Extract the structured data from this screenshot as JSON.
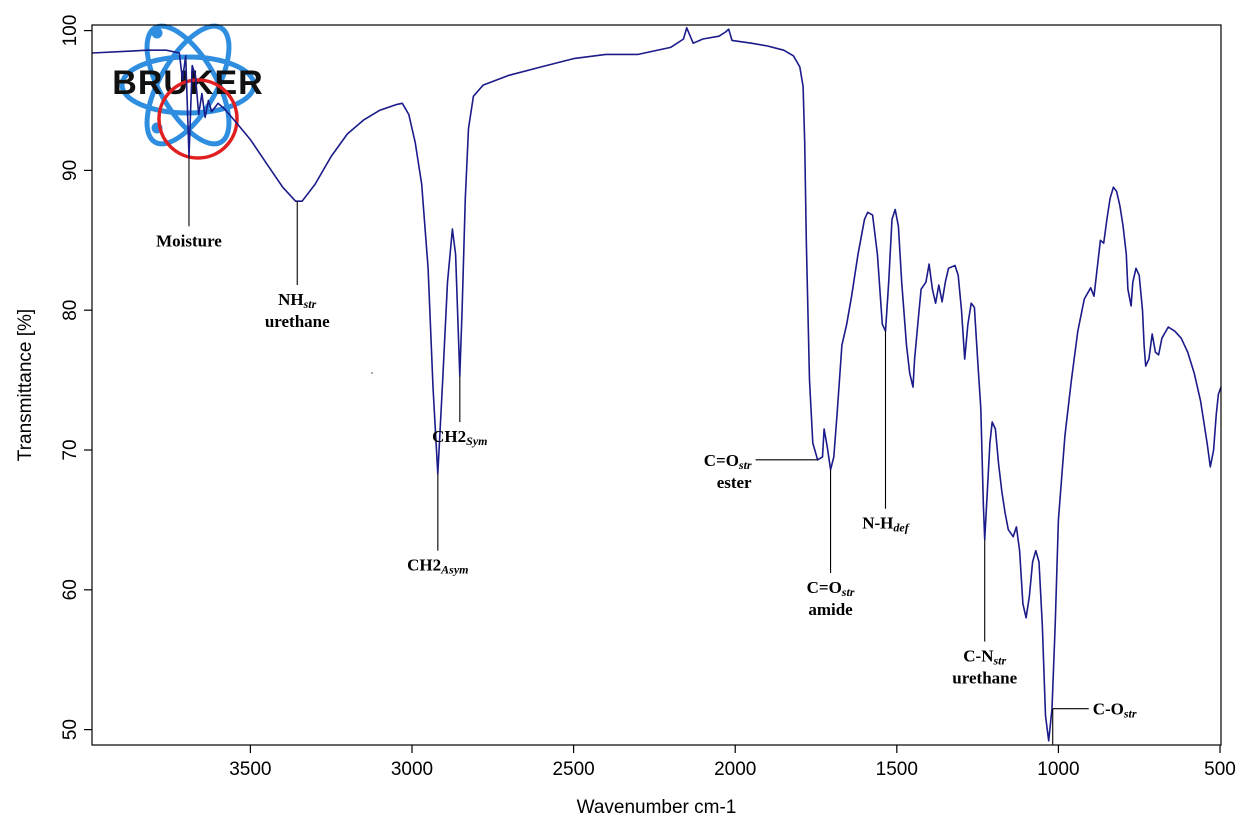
{
  "chart_data": {
    "type": "line",
    "xlabel": "Wavenumber cm-1",
    "ylabel": "Transmittance [%]",
    "x_reversed": true,
    "xlim": [
      3990,
      497
    ],
    "ylim": [
      48.9,
      100.4
    ],
    "xticks": [
      3500,
      3000,
      2500,
      2000,
      1500,
      1000,
      500
    ],
    "yticks": [
      50,
      60,
      70,
      80,
      90,
      100
    ],
    "grid": false,
    "line_color": "#1b1b8a",
    "series": [
      {
        "values": [
          [
            3990,
            98.4
          ],
          [
            3900,
            98.5
          ],
          [
            3820,
            98.6
          ],
          [
            3760,
            98.6
          ],
          [
            3720,
            98.4
          ],
          [
            3710,
            96.5
          ],
          [
            3700,
            98.2
          ],
          [
            3690,
            91.0
          ],
          [
            3680,
            97.5
          ],
          [
            3670,
            96.8
          ],
          [
            3660,
            94.0
          ],
          [
            3650,
            95.5
          ],
          [
            3640,
            93.8
          ],
          [
            3630,
            95.0
          ],
          [
            3620,
            94.2
          ],
          [
            3600,
            94.8
          ],
          [
            3580,
            94.4
          ],
          [
            3550,
            93.6
          ],
          [
            3500,
            92.2
          ],
          [
            3450,
            90.5
          ],
          [
            3400,
            88.8
          ],
          [
            3360,
            87.8
          ],
          [
            3340,
            87.8
          ],
          [
            3300,
            89.0
          ],
          [
            3250,
            91.0
          ],
          [
            3200,
            92.6
          ],
          [
            3150,
            93.6
          ],
          [
            3100,
            94.3
          ],
          [
            3050,
            94.7
          ],
          [
            3030,
            94.8
          ],
          [
            3010,
            94.0
          ],
          [
            2990,
            92.0
          ],
          [
            2970,
            89.0
          ],
          [
            2950,
            83.0
          ],
          [
            2935,
            74.5
          ],
          [
            2920,
            68.3
          ],
          [
            2905,
            75.0
          ],
          [
            2890,
            82.0
          ],
          [
            2875,
            85.8
          ],
          [
            2865,
            84.0
          ],
          [
            2852,
            75.3
          ],
          [
            2845,
            80.0
          ],
          [
            2835,
            88.0
          ],
          [
            2825,
            93.0
          ],
          [
            2810,
            95.3
          ],
          [
            2780,
            96.1
          ],
          [
            2700,
            96.8
          ],
          [
            2600,
            97.4
          ],
          [
            2500,
            98.0
          ],
          [
            2400,
            98.3
          ],
          [
            2300,
            98.3
          ],
          [
            2200,
            98.8
          ],
          [
            2160,
            99.4
          ],
          [
            2150,
            100.2
          ],
          [
            2130,
            99.1
          ],
          [
            2100,
            99.4
          ],
          [
            2050,
            99.6
          ],
          [
            2030,
            99.9
          ],
          [
            2020,
            100.1
          ],
          [
            2010,
            99.3
          ],
          [
            1950,
            99.1
          ],
          [
            1900,
            98.9
          ],
          [
            1850,
            98.6
          ],
          [
            1820,
            98.2
          ],
          [
            1800,
            97.4
          ],
          [
            1790,
            96.0
          ],
          [
            1785,
            92.0
          ],
          [
            1780,
            85.0
          ],
          [
            1770,
            75.0
          ],
          [
            1760,
            70.5
          ],
          [
            1745,
            69.3
          ],
          [
            1730,
            69.5
          ],
          [
            1725,
            71.5
          ],
          [
            1715,
            70.2
          ],
          [
            1705,
            68.6
          ],
          [
            1695,
            69.5
          ],
          [
            1685,
            72.5
          ],
          [
            1670,
            77.5
          ],
          [
            1655,
            79.0
          ],
          [
            1640,
            81.0
          ],
          [
            1620,
            84.0
          ],
          [
            1600,
            86.5
          ],
          [
            1590,
            87.0
          ],
          [
            1575,
            86.8
          ],
          [
            1560,
            84.0
          ],
          [
            1545,
            79.0
          ],
          [
            1535,
            78.5
          ],
          [
            1525,
            82.0
          ],
          [
            1515,
            86.5
          ],
          [
            1505,
            87.2
          ],
          [
            1495,
            86.0
          ],
          [
            1485,
            82.0
          ],
          [
            1470,
            77.5
          ],
          [
            1460,
            75.5
          ],
          [
            1450,
            74.5
          ],
          [
            1445,
            76.5
          ],
          [
            1435,
            79.0
          ],
          [
            1425,
            81.5
          ],
          [
            1410,
            82.0
          ],
          [
            1400,
            83.3
          ],
          [
            1390,
            81.5
          ],
          [
            1380,
            80.5
          ],
          [
            1370,
            81.8
          ],
          [
            1360,
            80.6
          ],
          [
            1350,
            82.0
          ],
          [
            1340,
            83.0
          ],
          [
            1320,
            83.2
          ],
          [
            1310,
            82.5
          ],
          [
            1300,
            80.0
          ],
          [
            1290,
            76.5
          ],
          [
            1280,
            79.0
          ],
          [
            1270,
            80.5
          ],
          [
            1260,
            80.2
          ],
          [
            1250,
            76.5
          ],
          [
            1240,
            73.0
          ],
          [
            1232,
            66.0
          ],
          [
            1228,
            63.6
          ],
          [
            1220,
            67.0
          ],
          [
            1212,
            70.5
          ],
          [
            1205,
            72.0
          ],
          [
            1195,
            71.5
          ],
          [
            1185,
            69.0
          ],
          [
            1175,
            67.0
          ],
          [
            1165,
            65.5
          ],
          [
            1155,
            64.3
          ],
          [
            1140,
            63.8
          ],
          [
            1130,
            64.5
          ],
          [
            1120,
            62.8
          ],
          [
            1110,
            59.0
          ],
          [
            1100,
            58.0
          ],
          [
            1090,
            59.5
          ],
          [
            1080,
            62.0
          ],
          [
            1070,
            62.8
          ],
          [
            1060,
            62.0
          ],
          [
            1050,
            57.5
          ],
          [
            1040,
            51.0
          ],
          [
            1030,
            49.2
          ],
          [
            1020,
            51.5
          ],
          [
            1010,
            57.5
          ],
          [
            1000,
            65.0
          ],
          [
            980,
            71.0
          ],
          [
            960,
            75.0
          ],
          [
            940,
            78.5
          ],
          [
            920,
            80.8
          ],
          [
            900,
            81.6
          ],
          [
            890,
            81.0
          ],
          [
            880,
            83.0
          ],
          [
            870,
            85.0
          ],
          [
            860,
            84.8
          ],
          [
            850,
            86.5
          ],
          [
            840,
            88.0
          ],
          [
            830,
            88.8
          ],
          [
            820,
            88.5
          ],
          [
            810,
            87.5
          ],
          [
            800,
            86.0
          ],
          [
            790,
            84.0
          ],
          [
            785,
            81.5
          ],
          [
            775,
            80.3
          ],
          [
            770,
            82.0
          ],
          [
            760,
            83.0
          ],
          [
            750,
            82.5
          ],
          [
            740,
            80.0
          ],
          [
            735,
            77.5
          ],
          [
            730,
            76.0
          ],
          [
            720,
            76.5
          ],
          [
            710,
            78.3
          ],
          [
            700,
            77.0
          ],
          [
            690,
            76.8
          ],
          [
            680,
            78.0
          ],
          [
            660,
            78.8
          ],
          [
            640,
            78.5
          ],
          [
            620,
            78.0
          ],
          [
            600,
            77.0
          ],
          [
            580,
            75.5
          ],
          [
            560,
            73.5
          ],
          [
            540,
            70.5
          ],
          [
            530,
            68.8
          ],
          [
            520,
            70.0
          ],
          [
            512,
            72.5
          ],
          [
            505,
            74.0
          ],
          [
            497,
            74.5
          ]
        ]
      }
    ],
    "annotations": [
      {
        "lines": [
          {
            "text": "Moisture",
            "sub": ""
          }
        ],
        "x": 3690,
        "y_tip": 91.0,
        "y_label": 86.0
      },
      {
        "lines": [
          {
            "text": "NH",
            "sub": "str"
          },
          {
            "text": "urethane",
            "sub": ""
          }
        ],
        "x": 3355,
        "y_tip": 87.8,
        "y_label": 81.8
      },
      {
        "lines": [
          {
            "text": "CH2",
            "sub": "Sym"
          }
        ],
        "x": 2852,
        "y_tip": 75.3,
        "y_label": 72.0
      },
      {
        "lines": [
          {
            "text": "CH2",
            "sub": "Asym"
          }
        ],
        "x": 2920,
        "y_tip": 68.3,
        "y_label": 62.8
      },
      {
        "lines": [
          {
            "text": "C=O",
            "sub": "str"
          },
          {
            "text": "ester",
            "sub": ""
          }
        ],
        "x": 1745,
        "y_tip": 69.3,
        "y_label": 69.3
      },
      {
        "lines": [
          {
            "text": "C=O",
            "sub": "str"
          },
          {
            "text": "amide",
            "sub": ""
          }
        ],
        "x": 1705,
        "y_tip": 68.6,
        "y_label": 61.2
      },
      {
        "lines": [
          {
            "text": "N-H",
            "sub": "def"
          }
        ],
        "x": 1535,
        "y_tip": 78.5,
        "y_label": 65.8
      },
      {
        "lines": [
          {
            "text": "C-N",
            "sub": "str"
          },
          {
            "text": "urethane",
            "sub": ""
          }
        ],
        "x": 1228,
        "y_tip": 63.6,
        "y_label": 56.3
      },
      {
        "lines": [
          {
            "text": "C-O",
            "sub": "str"
          }
        ],
        "x": 1030,
        "y_tip": 49.2,
        "y_label": 51.5
      }
    ]
  },
  "logo": {
    "text": "BRUKER",
    "orbit_color": "#2f8ee0",
    "ring_color": "#e02020"
  }
}
